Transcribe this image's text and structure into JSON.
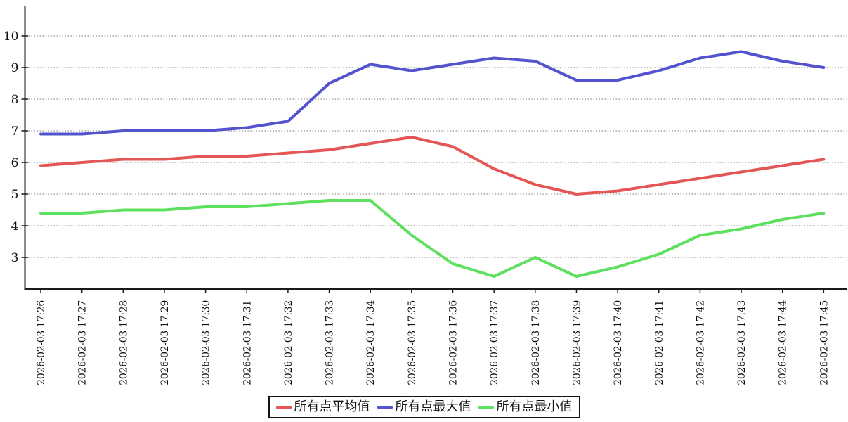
{
  "chart_data": {
    "type": "line",
    "x": [
      "2026-02-03 17:26",
      "2026-02-03 17:27",
      "2026-02-03 17:28",
      "2026-02-03 17:29",
      "2026-02-03 17:30",
      "2026-02-03 17:31",
      "2026-02-03 17:32",
      "2026-02-03 17:33",
      "2026-02-03 17:34",
      "2026-02-03 17:35",
      "2026-02-03 17:36",
      "2026-02-03 17:37",
      "2026-02-03 17:38",
      "2026-02-03 17:39",
      "2026-02-03 17:40",
      "2026-02-03 17:41",
      "2026-02-03 17:42",
      "2026-02-03 17:43",
      "2026-02-03 17:44",
      "2026-02-03 17:45"
    ],
    "series": [
      {
        "name": "所有点平均值",
        "color": "#e45656",
        "values": [
          5.9,
          6.0,
          6.1,
          6.1,
          6.2,
          6.2,
          6.3,
          6.4,
          6.6,
          6.8,
          6.5,
          5.8,
          5.3,
          5.0,
          5.1,
          5.3,
          5.5,
          5.7,
          5.9,
          6.1
        ]
      },
      {
        "name": "所有点最大值",
        "color": "#5353cd",
        "values": [
          6.9,
          6.9,
          7.0,
          7.0,
          7.0,
          7.1,
          7.3,
          8.5,
          9.1,
          8.9,
          9.1,
          9.3,
          9.2,
          8.6,
          8.6,
          8.9,
          9.3,
          9.5,
          9.2,
          9.0
        ]
      },
      {
        "name": "所有点最小值",
        "color": "#5ee05e",
        "values": [
          4.4,
          4.4,
          4.5,
          4.5,
          4.6,
          4.6,
          4.7,
          4.8,
          4.8,
          3.7,
          2.8,
          2.4,
          3.0,
          2.4,
          2.7,
          3.1,
          3.7,
          3.9,
          4.2,
          4.4
        ]
      }
    ],
    "title": "",
    "xlabel": "",
    "ylabel": "",
    "yticks": [
      3,
      4,
      5,
      6,
      7,
      8,
      9,
      10
    ],
    "ylim": [
      2.0,
      10.9
    ],
    "grid": "horizontal-dotted",
    "legend_position": "bottom-center",
    "axis_color": "#1a1a1a",
    "gridline_color": "#777777"
  }
}
